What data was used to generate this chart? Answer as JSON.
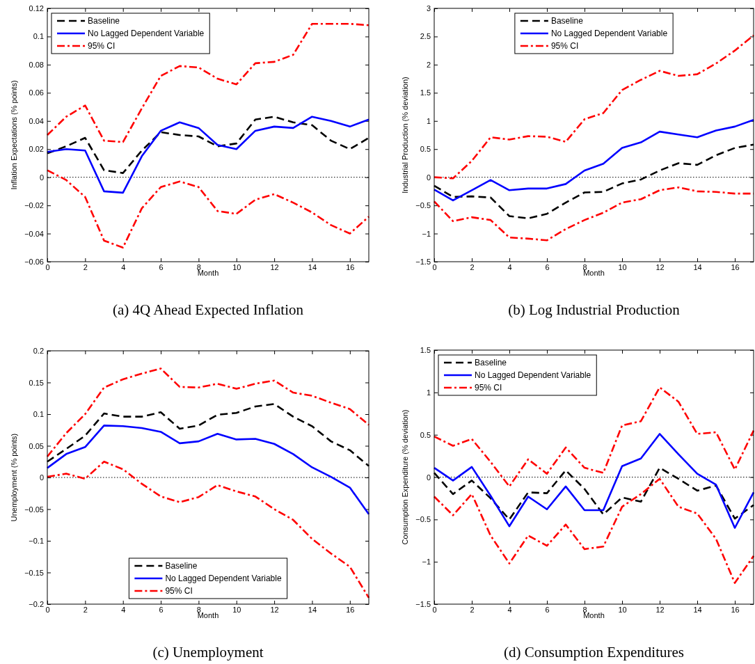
{
  "chart_data": [
    {
      "type": "line",
      "title": "(a) 4Q Ahead Expected Inflation",
      "xlabel": "Month",
      "ylabel": "Inflation Expectations (% points)",
      "x": [
        0,
        1,
        2,
        3,
        4,
        5,
        6,
        7,
        8,
        9,
        10,
        11,
        12,
        13,
        14,
        15,
        16,
        17
      ],
      "xlim": [
        0,
        17
      ],
      "xticks": [
        0,
        2,
        4,
        6,
        8,
        10,
        12,
        14,
        16
      ],
      "ylim": [
        -0.06,
        0.12
      ],
      "yticks": [
        -0.06,
        -0.04,
        -0.02,
        0,
        0.02,
        0.04,
        0.06,
        0.08,
        0.1,
        0.12
      ],
      "legend": "top left",
      "ref_lines": [
        {
          "axis": "y",
          "value": 0,
          "color": "#000000",
          "line_style": "dotted"
        }
      ],
      "series": [
        {
          "name": "Baseline",
          "color": "#000000",
          "line_style": "dashed",
          "values": [
            0.017,
            0.022,
            0.028,
            0.005,
            0.003,
            0.019,
            0.032,
            0.03,
            0.029,
            0.022,
            0.024,
            0.041,
            0.043,
            0.039,
            0.037,
            0.026,
            0.02,
            0.028
          ]
        },
        {
          "name": "No Lagged Dependent Variable",
          "color": "#0000ff",
          "line_style": "solid",
          "values": [
            0.018,
            0.02,
            0.019,
            -0.01,
            -0.011,
            0.015,
            0.033,
            0.039,
            0.035,
            0.023,
            0.02,
            0.033,
            0.036,
            0.035,
            0.043,
            0.04,
            0.036,
            0.041
          ]
        },
        {
          "name": "95% CI",
          "color": "#ff0000",
          "line_style": "dashdot",
          "values": [
            0.03,
            0.043,
            0.051,
            0.026,
            0.025,
            0.049,
            0.072,
            0.079,
            0.078,
            0.07,
            0.066,
            0.081,
            0.082,
            0.087,
            0.109,
            0.109,
            0.109,
            0.108
          ]
        },
        {
          "color": "#ff0000",
          "line_style": "dashdot",
          "values": [
            0.005,
            -0.002,
            -0.014,
            -0.045,
            -0.05,
            -0.022,
            -0.007,
            -0.003,
            -0.007,
            -0.024,
            -0.026,
            -0.016,
            -0.012,
            -0.018,
            -0.025,
            -0.034,
            -0.04,
            -0.028
          ]
        }
      ]
    },
    {
      "type": "line",
      "title": "(b) Log Industrial Production",
      "xlabel": "Month",
      "ylabel": "Industrial Production (% deviation)",
      "x": [
        0,
        1,
        2,
        3,
        4,
        5,
        6,
        7,
        8,
        9,
        10,
        11,
        12,
        13,
        14,
        15,
        16,
        17
      ],
      "xlim": [
        0,
        17
      ],
      "xticks": [
        0,
        2,
        4,
        6,
        8,
        10,
        12,
        14,
        16
      ],
      "ylim": [
        -1.5,
        3
      ],
      "yticks": [
        -1.5,
        -1,
        -0.5,
        0,
        0.5,
        1,
        1.5,
        2,
        2.5,
        3
      ],
      "legend": "top",
      "ref_lines": [
        {
          "axis": "y",
          "value": 0,
          "color": "#000000",
          "line_style": "dotted"
        }
      ],
      "series": [
        {
          "name": "Baseline",
          "color": "#000000",
          "line_style": "dashed",
          "values": [
            -0.15,
            -0.35,
            -0.34,
            -0.36,
            -0.69,
            -0.73,
            -0.65,
            -0.45,
            -0.27,
            -0.26,
            -0.11,
            -0.04,
            0.12,
            0.25,
            0.22,
            0.39,
            0.52,
            0.58
          ]
        },
        {
          "name": "No Lagged Dependent Variable",
          "color": "#0000ff",
          "line_style": "solid",
          "values": [
            -0.22,
            -0.41,
            -0.23,
            -0.05,
            -0.23,
            -0.2,
            -0.2,
            -0.12,
            0.12,
            0.24,
            0.52,
            0.62,
            0.81,
            0.76,
            0.71,
            0.83,
            0.9,
            1.02
          ]
        },
        {
          "name": "95% CI",
          "color": "#ff0000",
          "line_style": "dashdot",
          "values": [
            0.0,
            -0.02,
            0.29,
            0.71,
            0.67,
            0.73,
            0.72,
            0.63,
            1.03,
            1.14,
            1.55,
            1.73,
            1.89,
            1.8,
            1.83,
            2.02,
            2.25,
            2.52
          ]
        },
        {
          "color": "#ff0000",
          "line_style": "dashdot",
          "values": [
            -0.43,
            -0.78,
            -0.71,
            -0.76,
            -1.07,
            -1.09,
            -1.12,
            -0.92,
            -0.76,
            -0.63,
            -0.45,
            -0.39,
            -0.23,
            -0.18,
            -0.25,
            -0.26,
            -0.29,
            -0.29
          ]
        }
      ]
    },
    {
      "type": "line",
      "title": "(c) Unemployment",
      "xlabel": "Month",
      "ylabel": "Unemployment (% points)",
      "x": [
        0,
        1,
        2,
        3,
        4,
        5,
        6,
        7,
        8,
        9,
        10,
        11,
        12,
        13,
        14,
        15,
        16,
        17
      ],
      "xlim": [
        0,
        17
      ],
      "xticks": [
        0,
        2,
        4,
        6,
        8,
        10,
        12,
        14,
        16
      ],
      "ylim": [
        -0.2,
        0.2
      ],
      "yticks": [
        -0.2,
        -0.15,
        -0.1,
        -0.05,
        0,
        0.05,
        0.1,
        0.15,
        0.2
      ],
      "legend": "bottom",
      "ref_lines": [
        {
          "axis": "y",
          "value": 0,
          "color": "#000000",
          "line_style": "dotted"
        }
      ],
      "series": [
        {
          "name": "Baseline",
          "color": "#000000",
          "line_style": "dashed",
          "values": [
            0.025,
            0.045,
            0.066,
            0.101,
            0.096,
            0.096,
            0.103,
            0.077,
            0.082,
            0.099,
            0.102,
            0.112,
            0.116,
            0.096,
            0.081,
            0.057,
            0.043,
            0.018
          ]
        },
        {
          "name": "No Lagged Dependent Variable",
          "color": "#0000ff",
          "line_style": "solid",
          "values": [
            0.015,
            0.037,
            0.048,
            0.082,
            0.081,
            0.078,
            0.072,
            0.054,
            0.057,
            0.069,
            0.06,
            0.061,
            0.053,
            0.037,
            0.016,
            0.001,
            -0.016,
            -0.058
          ]
        },
        {
          "name": "95% CI",
          "color": "#ff0000",
          "line_style": "dashdot",
          "values": [
            0.033,
            0.07,
            0.1,
            0.142,
            0.155,
            0.164,
            0.172,
            0.143,
            0.142,
            0.148,
            0.14,
            0.148,
            0.153,
            0.134,
            0.129,
            0.118,
            0.108,
            0.083
          ]
        },
        {
          "color": "#ff0000",
          "line_style": "dashdot",
          "values": [
            0.001,
            0.006,
            -0.002,
            0.025,
            0.013,
            -0.01,
            -0.03,
            -0.039,
            -0.031,
            -0.012,
            -0.022,
            -0.03,
            -0.05,
            -0.067,
            -0.097,
            -0.12,
            -0.141,
            -0.19
          ]
        }
      ]
    },
    {
      "type": "line",
      "title": "(d) Consumption Expenditures",
      "xlabel": "Month",
      "ylabel": "Consumption Expenditure (% deviation)",
      "x": [
        0,
        1,
        2,
        3,
        4,
        5,
        6,
        7,
        8,
        9,
        10,
        11,
        12,
        13,
        14,
        15,
        16,
        17
      ],
      "xlim": [
        0,
        17
      ],
      "xticks": [
        0,
        2,
        4,
        6,
        8,
        10,
        12,
        14,
        16
      ],
      "ylim": [
        -1.5,
        1.5
      ],
      "yticks": [
        -1.5,
        -1,
        -0.5,
        0,
        0.5,
        1,
        1.5
      ],
      "legend": "top left",
      "ref_lines": [
        {
          "axis": "y",
          "value": 0,
          "color": "#000000",
          "line_style": "dotted"
        }
      ],
      "series": [
        {
          "name": "Baseline",
          "color": "#000000",
          "line_style": "dashed",
          "values": [
            0.05,
            -0.2,
            -0.04,
            -0.25,
            -0.5,
            -0.18,
            -0.19,
            0.08,
            -0.14,
            -0.44,
            -0.24,
            -0.29,
            0.11,
            -0.02,
            -0.16,
            -0.1,
            -0.49,
            -0.33
          ]
        },
        {
          "name": "No Lagged Dependent Variable",
          "color": "#0000ff",
          "line_style": "solid",
          "values": [
            0.11,
            -0.04,
            0.12,
            -0.22,
            -0.58,
            -0.23,
            -0.38,
            -0.11,
            -0.39,
            -0.39,
            0.13,
            0.22,
            0.51,
            0.27,
            0.04,
            -0.09,
            -0.6,
            -0.18
          ]
        },
        {
          "name": "95% CI",
          "color": "#ff0000",
          "line_style": "dashdot",
          "values": [
            0.48,
            0.37,
            0.45,
            0.18,
            -0.11,
            0.21,
            0.04,
            0.35,
            0.11,
            0.05,
            0.61,
            0.66,
            1.06,
            0.89,
            0.51,
            0.53,
            0.09,
            0.55
          ]
        },
        {
          "color": "#ff0000",
          "line_style": "dashdot",
          "values": [
            -0.23,
            -0.45,
            -0.2,
            -0.69,
            -1.02,
            -0.69,
            -0.81,
            -0.56,
            -0.85,
            -0.82,
            -0.35,
            -0.2,
            -0.02,
            -0.35,
            -0.43,
            -0.73,
            -1.25,
            -0.93
          ]
        }
      ]
    }
  ]
}
